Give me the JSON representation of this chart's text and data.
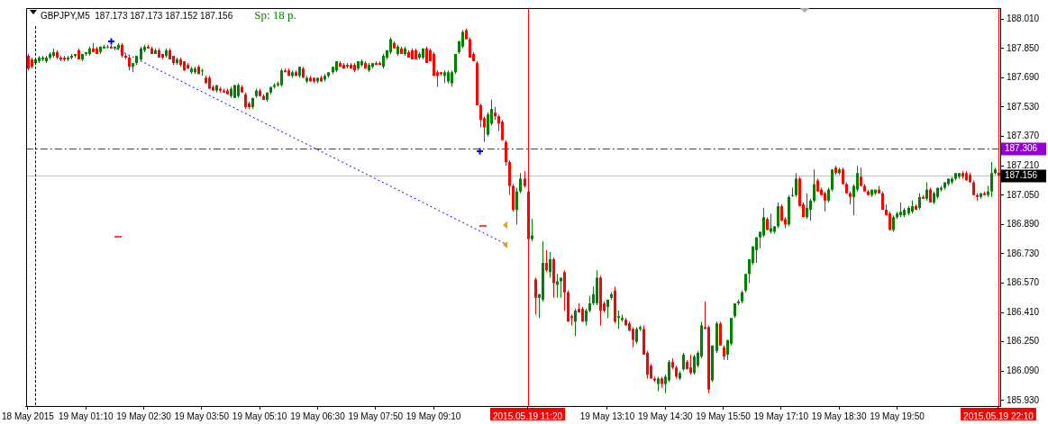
{
  "chart_data": {
    "type": "candlestick",
    "title": "GBPJPY,M5  187.173 187.173 187.152 187.156",
    "annotations": [
      "Sp: 18 p."
    ],
    "categories": [
      "18 May 2015",
      null,
      null,
      null,
      null,
      null,
      null,
      null,
      null,
      null,
      null,
      null,
      null,
      null,
      null,
      null,
      "19 May 01:10",
      null,
      null,
      null,
      null,
      null,
      null,
      null,
      null,
      null,
      null,
      null,
      null,
      null,
      null,
      null,
      "19 May 02:30",
      null,
      null,
      null,
      null,
      null,
      null,
      null,
      null,
      null,
      null,
      null,
      null,
      null,
      null,
      null,
      "19 May 03:50",
      null,
      null,
      null,
      null,
      null,
      null,
      null,
      null,
      null,
      null,
      null,
      null,
      null,
      null,
      null,
      "19 May 05:10",
      null,
      null,
      null,
      null,
      null,
      null,
      null,
      null,
      null,
      null,
      null,
      null,
      null,
      null,
      null,
      "19 May 06:30",
      null,
      null,
      null,
      null,
      null,
      null,
      null,
      null,
      null,
      null,
      null,
      null,
      null,
      null,
      null,
      "19 May 07:50",
      null,
      null,
      null,
      null,
      null,
      null,
      null,
      null,
      null,
      null,
      null,
      null,
      null,
      null,
      null,
      "19 May 09:10",
      null,
      null,
      null,
      null,
      null,
      null,
      null,
      null,
      null,
      null,
      null,
      null,
      null,
      null,
      null,
      null,
      null,
      null,
      null,
      null,
      null,
      null,
      null,
      null,
      null,
      "2015.05.19 11:20",
      null,
      null,
      null,
      null,
      null,
      null,
      null,
      null,
      null,
      null,
      null,
      null,
      null,
      null,
      null,
      null,
      null,
      null,
      null,
      null,
      null,
      "19 May 13:10",
      null,
      null,
      null,
      null,
      null,
      null,
      null,
      null,
      null,
      null,
      null,
      null,
      null,
      null,
      null,
      "19 May 14:30",
      null,
      null,
      null,
      null,
      null,
      null,
      null,
      null,
      null,
      null,
      null,
      null,
      null,
      null,
      null,
      "19 May 15:50",
      null,
      null,
      null,
      null,
      null,
      null,
      null,
      null,
      null,
      null,
      null,
      null,
      null,
      null,
      null,
      "19 May 17:10",
      null,
      null,
      null,
      null,
      null,
      null,
      null,
      null,
      null,
      null,
      null,
      null,
      null,
      null,
      null,
      "19 May 18:30",
      null,
      null,
      null,
      null,
      null,
      null,
      null,
      null,
      null,
      null,
      null,
      null,
      null,
      null,
      null,
      "19 May 19:50",
      null,
      null,
      null,
      null,
      null,
      null,
      null,
      null,
      null,
      null,
      null,
      null,
      null,
      null,
      null,
      null,
      null,
      null,
      null,
      null,
      null,
      null,
      null,
      null,
      null,
      null,
      null,
      "2015.05.19 22:10"
    ],
    "ohlc": [
      [
        187.81,
        187.82,
        187.73,
        187.74
      ],
      [
        187.79,
        187.8,
        187.74,
        187.75
      ],
      [
        187.77,
        187.8,
        187.76,
        187.79
      ],
      [
        187.78,
        187.81,
        187.77,
        187.8
      ],
      [
        187.79,
        187.81,
        187.78,
        187.8
      ],
      [
        187.78,
        187.81,
        187.77,
        187.8
      ],
      [
        187.8,
        187.83,
        187.79,
        187.82
      ],
      [
        187.81,
        187.85,
        187.8,
        187.83
      ],
      [
        187.83,
        187.84,
        187.79,
        187.8
      ],
      [
        187.8,
        187.81,
        187.78,
        187.79
      ],
      [
        187.8,
        187.81,
        187.78,
        187.79
      ],
      [
        187.79,
        187.81,
        187.78,
        187.8
      ],
      [
        187.8,
        187.82,
        187.79,
        187.81
      ],
      [
        187.81,
        187.82,
        187.8,
        187.82
      ],
      [
        187.84,
        187.85,
        187.79,
        187.79
      ],
      [
        187.79,
        187.82,
        187.78,
        187.82
      ],
      [
        187.82,
        187.83,
        187.81,
        187.83
      ],
      [
        187.82,
        187.86,
        187.81,
        187.85
      ],
      [
        187.85,
        187.88,
        187.83,
        187.83
      ],
      [
        187.85,
        187.86,
        187.82,
        187.82
      ],
      [
        187.83,
        187.86,
        187.82,
        187.86
      ],
      [
        187.85,
        187.87,
        187.85,
        187.86
      ],
      [
        187.86,
        187.87,
        187.85,
        187.86
      ],
      [
        187.86,
        187.87,
        187.85,
        187.85
      ],
      [
        187.85,
        187.86,
        187.84,
        187.86
      ],
      [
        187.85,
        187.88,
        187.84,
        187.87
      ],
      [
        187.87,
        187.88,
        187.8,
        187.81
      ],
      [
        187.81,
        187.82,
        187.79,
        187.8
      ],
      [
        187.8,
        187.81,
        187.73,
        187.75
      ],
      [
        187.75,
        187.77,
        187.72,
        187.77
      ],
      [
        187.77,
        187.81,
        187.76,
        187.81
      ],
      [
        187.79,
        187.86,
        187.78,
        187.85
      ],
      [
        187.84,
        187.87,
        187.83,
        187.86
      ],
      [
        187.86,
        187.87,
        187.85,
        187.85
      ],
      [
        187.85,
        187.86,
        187.82,
        187.82
      ],
      [
        187.82,
        187.85,
        187.82,
        187.84
      ],
      [
        187.84,
        187.85,
        187.8,
        187.8
      ],
      [
        187.82,
        187.82,
        187.79,
        187.8
      ],
      [
        187.81,
        187.85,
        187.8,
        187.84
      ],
      [
        187.84,
        187.85,
        187.79,
        187.79
      ],
      [
        187.81,
        187.81,
        187.76,
        187.77
      ],
      [
        187.77,
        187.8,
        187.76,
        187.79
      ],
      [
        187.79,
        187.8,
        187.75,
        187.76
      ],
      [
        187.78,
        187.78,
        187.73,
        187.73
      ],
      [
        187.76,
        187.77,
        187.74,
        187.74
      ],
      [
        187.72,
        187.75,
        187.71,
        187.74
      ],
      [
        187.72,
        187.75,
        187.71,
        187.74
      ],
      [
        187.75,
        187.76,
        187.71,
        187.71
      ],
      [
        187.73,
        187.74,
        187.7,
        187.73
      ],
      [
        187.69,
        187.7,
        187.66,
        187.66
      ],
      [
        187.69,
        187.7,
        187.63,
        187.63
      ],
      [
        187.64,
        187.65,
        187.62,
        187.62
      ],
      [
        187.62,
        187.65,
        187.61,
        187.65
      ],
      [
        187.63,
        187.64,
        187.61,
        187.62
      ],
      [
        187.62,
        187.63,
        187.61,
        187.61
      ],
      [
        187.62,
        187.63,
        187.6,
        187.6
      ],
      [
        187.59,
        187.64,
        187.58,
        187.63
      ],
      [
        187.58,
        187.65,
        187.58,
        187.65
      ],
      [
        187.59,
        187.66,
        187.58,
        187.65
      ],
      [
        187.64,
        187.65,
        187.61,
        187.61
      ],
      [
        187.6,
        187.61,
        187.52,
        187.53
      ],
      [
        187.55,
        187.56,
        187.52,
        187.53
      ],
      [
        187.53,
        187.58,
        187.52,
        187.58
      ],
      [
        187.59,
        187.63,
        187.58,
        187.62
      ],
      [
        187.62,
        187.63,
        187.59,
        187.59
      ],
      [
        187.59,
        187.6,
        187.57,
        187.57
      ],
      [
        187.57,
        187.61,
        187.56,
        187.61
      ],
      [
        187.61,
        187.64,
        187.6,
        187.64
      ],
      [
        187.64,
        187.66,
        187.63,
        187.65
      ],
      [
        187.65,
        187.67,
        187.64,
        187.66
      ],
      [
        187.65,
        187.74,
        187.64,
        187.73
      ],
      [
        187.73,
        187.74,
        187.72,
        187.72
      ],
      [
        187.73,
        187.74,
        187.7,
        187.7
      ],
      [
        187.7,
        187.73,
        187.69,
        187.72
      ],
      [
        187.72,
        187.73,
        187.7,
        187.7
      ],
      [
        187.7,
        187.75,
        187.69,
        187.75
      ],
      [
        187.74,
        187.75,
        187.69,
        187.69
      ],
      [
        187.67,
        187.7,
        187.66,
        187.69
      ],
      [
        187.69,
        187.7,
        187.67,
        187.67
      ],
      [
        187.69,
        187.69,
        187.66,
        187.67
      ],
      [
        187.67,
        187.69,
        187.66,
        187.69
      ],
      [
        187.69,
        187.7,
        187.67,
        187.67
      ],
      [
        187.68,
        187.71,
        187.67,
        187.7
      ],
      [
        187.7,
        187.72,
        187.69,
        187.72
      ],
      [
        187.72,
        187.75,
        187.71,
        187.75
      ],
      [
        187.73,
        187.78,
        187.72,
        187.78
      ],
      [
        187.77,
        187.78,
        187.75,
        187.75
      ],
      [
        187.76,
        187.77,
        187.74,
        187.74
      ],
      [
        187.75,
        187.77,
        187.74,
        187.76
      ],
      [
        187.76,
        187.77,
        187.74,
        187.74
      ],
      [
        187.76,
        187.77,
        187.72,
        187.73
      ],
      [
        187.74,
        187.78,
        187.73,
        187.78
      ],
      [
        187.76,
        187.79,
        187.75,
        187.78
      ],
      [
        187.77,
        187.78,
        187.74,
        187.74
      ],
      [
        187.73,
        187.77,
        187.72,
        187.76
      ],
      [
        187.75,
        187.77,
        187.74,
        187.77
      ],
      [
        187.77,
        187.78,
        187.76,
        187.76
      ],
      [
        187.77,
        187.78,
        187.76,
        187.76
      ],
      [
        187.75,
        187.82,
        187.74,
        187.81
      ],
      [
        187.8,
        187.84,
        187.79,
        187.84
      ],
      [
        187.83,
        187.91,
        187.82,
        187.9
      ],
      [
        187.88,
        187.89,
        187.85,
        187.85
      ],
      [
        187.82,
        187.87,
        187.81,
        187.86
      ],
      [
        187.85,
        187.86,
        187.82,
        187.82
      ],
      [
        187.82,
        187.86,
        187.81,
        187.85
      ],
      [
        187.83,
        187.84,
        187.8,
        187.8
      ],
      [
        187.84,
        187.85,
        187.79,
        187.79
      ],
      [
        187.84,
        187.85,
        187.79,
        187.79
      ],
      [
        187.8,
        187.83,
        187.79,
        187.82
      ],
      [
        187.8,
        187.85,
        187.79,
        187.85
      ],
      [
        187.85,
        187.86,
        187.77,
        187.77
      ],
      [
        187.84,
        187.85,
        187.78,
        187.78
      ],
      [
        187.82,
        187.83,
        187.7,
        187.7
      ],
      [
        187.72,
        187.73,
        187.64,
        187.7
      ],
      [
        187.72,
        187.72,
        187.7,
        187.71
      ],
      [
        187.7,
        187.73,
        187.66,
        187.72
      ],
      [
        187.67,
        187.73,
        187.66,
        187.72
      ],
      [
        187.66,
        187.73,
        187.64,
        187.72
      ],
      [
        187.72,
        187.82,
        187.71,
        187.82
      ],
      [
        187.83,
        187.89,
        187.82,
        187.89
      ],
      [
        187.86,
        187.95,
        187.85,
        187.94
      ],
      [
        187.95,
        187.96,
        187.9,
        187.9
      ],
      [
        187.9,
        187.91,
        187.8,
        187.8
      ],
      [
        187.82,
        187.83,
        187.78,
        187.78
      ],
      [
        187.77,
        187.78,
        187.54,
        187.54
      ],
      [
        187.54,
        187.55,
        187.42,
        187.46
      ],
      [
        187.47,
        187.48,
        187.34,
        187.42
      ],
      [
        187.38,
        187.5,
        187.37,
        187.49
      ],
      [
        187.44,
        187.57,
        187.43,
        187.52
      ],
      [
        187.5,
        187.53,
        187.46,
        187.48
      ],
      [
        187.48,
        187.49,
        187.4,
        187.44
      ],
      [
        187.45,
        187.46,
        187.35,
        187.35
      ],
      [
        187.34,
        187.35,
        187.21,
        187.23
      ],
      [
        187.23,
        187.24,
        187.05,
        187.1
      ],
      [
        187.1,
        187.11,
        186.96,
        186.97
      ],
      [
        186.97,
        187.09,
        186.89,
        187.07
      ],
      [
        187.07,
        187.17,
        187.06,
        187.14
      ],
      [
        187.14,
        187.18,
        187.09,
        187.1
      ],
      [
        187.07,
        187.08,
        186.81,
        186.81
      ],
      [
        186.81,
        186.92,
        186.8,
        186.83
      ],
      [
        186.59,
        186.6,
        186.4,
        186.49
      ],
      [
        186.49,
        186.51,
        186.38,
        186.51
      ],
      [
        186.48,
        186.8,
        186.47,
        186.68
      ],
      [
        186.68,
        186.75,
        186.63,
        186.64
      ],
      [
        186.63,
        186.74,
        186.6,
        186.7
      ],
      [
        186.7,
        186.71,
        186.49,
        186.57
      ],
      [
        186.56,
        186.62,
        186.49,
        186.58
      ],
      [
        186.58,
        186.6,
        186.49,
        186.6
      ],
      [
        186.63,
        186.64,
        186.42,
        186.52
      ],
      [
        186.52,
        186.53,
        186.36,
        186.36
      ],
      [
        186.39,
        186.4,
        186.34,
        186.38
      ],
      [
        186.36,
        186.43,
        186.28,
        186.42
      ],
      [
        186.43,
        186.46,
        186.41,
        186.41
      ],
      [
        186.43,
        186.44,
        186.36,
        186.36
      ],
      [
        186.36,
        186.43,
        186.34,
        186.42
      ],
      [
        186.42,
        186.5,
        186.41,
        186.46
      ],
      [
        186.46,
        186.55,
        186.45,
        186.51
      ],
      [
        186.46,
        186.64,
        186.45,
        186.6
      ],
      [
        186.6,
        186.61,
        186.34,
        186.42
      ],
      [
        186.46,
        186.47,
        186.41,
        186.42
      ],
      [
        186.44,
        186.48,
        186.38,
        186.48
      ],
      [
        186.49,
        186.52,
        186.48,
        186.51
      ],
      [
        186.53,
        186.55,
        186.35,
        186.36
      ],
      [
        186.38,
        186.42,
        186.32,
        186.39
      ],
      [
        186.37,
        186.4,
        186.36,
        186.38
      ],
      [
        186.37,
        186.38,
        186.34,
        186.34
      ],
      [
        186.35,
        186.36,
        186.31,
        186.31
      ],
      [
        186.32,
        186.33,
        186.22,
        186.26
      ],
      [
        186.25,
        186.33,
        186.24,
        186.32
      ],
      [
        186.32,
        186.34,
        186.31,
        186.33
      ],
      [
        186.32,
        186.34,
        186.18,
        186.18
      ],
      [
        186.19,
        186.2,
        186.05,
        186.07
      ],
      [
        186.12,
        186.13,
        186.05,
        186.05
      ],
      [
        186.05,
        186.06,
        186.03,
        186.04
      ],
      [
        186.02,
        186.06,
        185.98,
        186.05
      ],
      [
        186.05,
        186.06,
        186.0,
        186.02
      ],
      [
        186.02,
        186.07,
        185.97,
        186.06
      ],
      [
        186.04,
        186.15,
        186.03,
        186.14
      ],
      [
        186.14,
        186.16,
        186.1,
        186.11
      ],
      [
        186.11,
        186.12,
        186.05,
        186.06
      ],
      [
        186.05,
        186.09,
        186.04,
        186.08
      ],
      [
        186.1,
        186.19,
        186.09,
        186.18
      ],
      [
        186.14,
        186.15,
        186.1,
        186.1
      ],
      [
        186.11,
        186.18,
        186.07,
        186.08
      ],
      [
        186.08,
        186.18,
        186.07,
        186.17
      ],
      [
        186.12,
        186.2,
        186.11,
        186.19
      ],
      [
        186.17,
        186.36,
        186.16,
        186.34
      ],
      [
        186.33,
        186.47,
        186.32,
        186.32
      ],
      [
        186.33,
        186.34,
        185.97,
        185.99
      ],
      [
        186.04,
        186.23,
        186.03,
        186.23
      ],
      [
        186.2,
        186.36,
        186.19,
        186.35
      ],
      [
        186.35,
        186.36,
        186.23,
        186.23
      ],
      [
        186.22,
        186.23,
        186.15,
        186.17
      ],
      [
        186.18,
        186.26,
        186.15,
        186.26
      ],
      [
        186.24,
        186.38,
        186.23,
        186.38
      ],
      [
        186.39,
        186.46,
        186.38,
        186.46
      ],
      [
        186.46,
        186.48,
        186.45,
        186.47
      ],
      [
        186.47,
        186.53,
        186.46,
        186.52
      ],
      [
        186.53,
        186.62,
        186.52,
        186.62
      ],
      [
        186.62,
        186.7,
        186.57,
        186.7
      ],
      [
        186.68,
        186.77,
        186.67,
        186.77
      ],
      [
        186.75,
        186.82,
        186.68,
        186.82
      ],
      [
        186.82,
        186.85,
        186.76,
        186.85
      ],
      [
        186.83,
        186.98,
        186.82,
        186.93
      ],
      [
        186.92,
        186.93,
        186.86,
        186.86
      ],
      [
        186.85,
        186.95,
        186.84,
        186.87
      ],
      [
        186.85,
        186.88,
        186.84,
        186.88
      ],
      [
        186.88,
        187.01,
        186.87,
        186.99
      ],
      [
        186.99,
        187.0,
        186.91,
        186.91
      ],
      [
        186.92,
        186.93,
        186.87,
        186.89
      ],
      [
        186.89,
        187.05,
        186.88,
        187.04
      ],
      [
        187.05,
        187.09,
        187.04,
        187.05
      ],
      [
        187.05,
        187.17,
        187.04,
        187.14
      ],
      [
        187.14,
        187.15,
        186.99,
        186.99
      ],
      [
        187.0,
        187.01,
        186.93,
        186.93
      ],
      [
        186.93,
        187.06,
        186.92,
        186.98
      ],
      [
        186.97,
        187.03,
        186.91,
        187.02
      ],
      [
        187.02,
        187.19,
        187.01,
        187.11
      ],
      [
        187.13,
        187.14,
        187.07,
        187.07
      ],
      [
        187.08,
        187.09,
        187.05,
        187.05
      ],
      [
        187.06,
        187.07,
        186.96,
        187.02
      ],
      [
        187.02,
        187.09,
        187.01,
        187.08
      ],
      [
        187.08,
        187.19,
        187.07,
        187.19
      ],
      [
        187.2,
        187.21,
        187.16,
        187.17
      ],
      [
        187.17,
        187.2,
        187.16,
        187.19
      ],
      [
        187.19,
        187.2,
        187.11,
        187.11
      ],
      [
        187.11,
        187.12,
        187.06,
        187.06
      ],
      [
        187.06,
        187.07,
        187.0,
        187.04
      ],
      [
        187.04,
        187.11,
        186.94,
        187.1
      ],
      [
        187.08,
        187.21,
        187.07,
        187.17
      ],
      [
        187.15,
        187.2,
        187.1,
        187.1
      ],
      [
        187.1,
        187.11,
        187.07,
        187.07
      ],
      [
        187.07,
        187.08,
        187.05,
        187.05
      ],
      [
        187.05,
        187.08,
        187.04,
        187.08
      ],
      [
        187.06,
        187.08,
        187.05,
        187.08
      ],
      [
        187.08,
        187.1,
        187.06,
        187.06
      ],
      [
        187.06,
        187.07,
        186.97,
        186.97
      ],
      [
        186.97,
        187.0,
        186.94,
        186.94
      ],
      [
        186.95,
        186.96,
        186.86,
        186.86
      ],
      [
        186.86,
        186.94,
        186.85,
        186.93
      ],
      [
        186.93,
        186.96,
        186.92,
        186.95
      ],
      [
        186.94,
        187.01,
        186.93,
        186.96
      ],
      [
        186.94,
        186.98,
        186.93,
        186.97
      ],
      [
        186.95,
        186.99,
        186.94,
        186.98
      ],
      [
        186.96,
        187.02,
        186.95,
        186.99
      ],
      [
        186.99,
        187.0,
        186.97,
        186.97
      ],
      [
        186.98,
        187.06,
        186.97,
        187.04
      ],
      [
        187.04,
        187.05,
        187.03,
        187.03
      ],
      [
        187.03,
        187.12,
        187.02,
        187.08
      ],
      [
        187.08,
        187.09,
        187.01,
        187.01
      ],
      [
        187.01,
        187.07,
        187.0,
        187.06
      ],
      [
        187.04,
        187.09,
        187.03,
        187.09
      ],
      [
        187.08,
        187.1,
        187.07,
        187.09
      ],
      [
        187.09,
        187.12,
        187.08,
        187.12
      ],
      [
        187.11,
        187.14,
        187.1,
        187.14
      ],
      [
        187.12,
        187.15,
        187.11,
        187.14
      ],
      [
        187.14,
        187.17,
        187.13,
        187.17
      ],
      [
        187.15,
        187.17,
        187.14,
        187.17
      ],
      [
        187.17,
        187.18,
        187.14,
        187.15
      ],
      [
        187.17,
        187.18,
        187.13,
        187.13
      ],
      [
        187.16,
        187.17,
        187.12,
        187.12
      ],
      [
        187.12,
        187.13,
        187.05,
        187.05
      ],
      [
        187.05,
        187.06,
        187.02,
        187.04
      ],
      [
        187.04,
        187.06,
        187.03,
        187.06
      ],
      [
        187.06,
        187.07,
        187.05,
        187.05
      ],
      [
        187.05,
        187.1,
        187.04,
        187.07
      ],
      [
        187.07,
        187.23,
        187.04,
        187.17
      ],
      [
        187.17,
        187.2,
        187.16,
        187.19
      ],
      [
        187.173,
        187.173,
        187.152,
        187.156
      ]
    ],
    "ylim": [
      185.9,
      188.07
    ],
    "yticks": [
      {
        "value": 188.01,
        "label": "188.010"
      },
      {
        "value": 187.85,
        "label": "187.850"
      },
      {
        "value": 187.69,
        "label": "187.690"
      },
      {
        "value": 187.53,
        "label": "187.530"
      },
      {
        "value": 187.37,
        "label": "187.370"
      },
      {
        "value": 187.21,
        "label": "187.210"
      },
      {
        "value": 187.05,
        "label": "187.050"
      },
      {
        "value": 186.89,
        "label": "186.890"
      },
      {
        "value": 186.73,
        "label": "186.730"
      },
      {
        "value": 186.57,
        "label": "186.570"
      },
      {
        "value": 186.41,
        "label": "186.410"
      },
      {
        "value": 186.25,
        "label": "186.250"
      },
      {
        "value": 186.09,
        "label": "186.090"
      },
      {
        "value": 185.93,
        "label": "185.930"
      }
    ],
    "ref_lines": [
      {
        "axis": "y",
        "value": 187.306,
        "label": "187.306",
        "color": "#9400d3",
        "line_style": "dashed"
      },
      {
        "axis": "y",
        "value": 187.156,
        "label": "187.156",
        "color": "#c0c0c0"
      },
      {
        "axis": "x",
        "value": "2015.05.19 11:20",
        "color": "#ff0000"
      },
      {
        "axis": "x",
        "value": "2015.05.19 22:10",
        "color": "#ff0000"
      }
    ]
  }
}
